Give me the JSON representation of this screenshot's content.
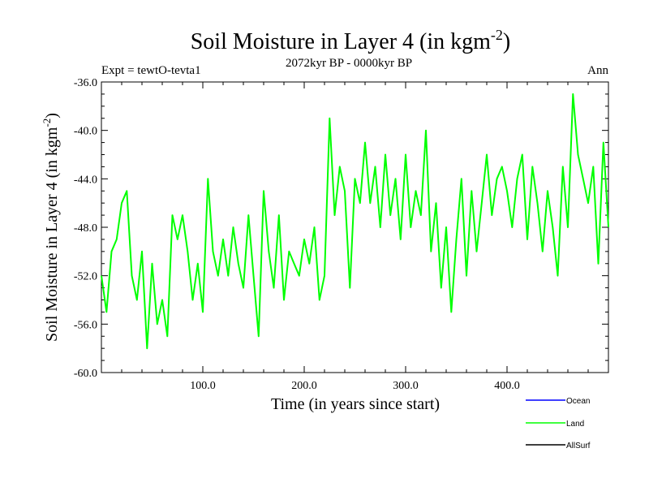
{
  "chart_data": {
    "type": "line",
    "title": "Soil Moisture in Layer 4 (in kgm",
    "title_sup": "-2",
    "title_close": ")",
    "subtitle": "2072kyr BP - 0000kyr BP",
    "left_label": "Expt = tewtO-tevta1",
    "right_label": "Ann",
    "xlabel": "Time (in years since start)",
    "ylabel": "Soil Moisture in Layer 4 (in kgm",
    "ylabel_sup": "-2",
    "ylabel_close": ")",
    "xlim": [
      0,
      500
    ],
    "ylim": [
      -60,
      -36
    ],
    "xticks": [
      "100.0",
      "200.0",
      "300.0",
      "400.0"
    ],
    "xtick_values": [
      100,
      200,
      300,
      400
    ],
    "yticks": [
      "-36.0",
      "-40.0",
      "-44.0",
      "-48.0",
      "-52.0",
      "-56.0",
      "-60.0"
    ],
    "ytick_values": [
      -36,
      -40,
      -44,
      -48,
      -52,
      -56,
      -60
    ],
    "legend": [
      {
        "name": "Ocean",
        "color": "#0000ff"
      },
      {
        "name": "Land",
        "color": "#00ff00"
      },
      {
        "name": "AllSurf",
        "color": "#000000"
      }
    ],
    "series": [
      {
        "name": "Land",
        "color": "#00ff00",
        "x": [
          0,
          5,
          10,
          15,
          20,
          25,
          30,
          35,
          40,
          45,
          50,
          55,
          60,
          65,
          70,
          75,
          80,
          85,
          90,
          95,
          100,
          105,
          110,
          115,
          120,
          125,
          130,
          135,
          140,
          145,
          150,
          155,
          160,
          165,
          170,
          175,
          180,
          185,
          190,
          195,
          200,
          205,
          210,
          215,
          220,
          225,
          230,
          235,
          240,
          245,
          250,
          255,
          260,
          265,
          270,
          275,
          280,
          285,
          290,
          295,
          300,
          305,
          310,
          315,
          320,
          325,
          330,
          335,
          340,
          345,
          350,
          355,
          360,
          365,
          370,
          375,
          380,
          385,
          390,
          395,
          400,
          405,
          410,
          415,
          420,
          425,
          430,
          435,
          440,
          445,
          450,
          455,
          460,
          465,
          470,
          475,
          480,
          485,
          490,
          495,
          500
        ],
        "values": [
          -52,
          -55,
          -50,
          -49,
          -46,
          -45,
          -52,
          -54,
          -50,
          -58,
          -51,
          -56,
          -54,
          -57,
          -47,
          -49,
          -47,
          -50,
          -54,
          -51,
          -55,
          -44,
          -50,
          -52,
          -49,
          -52,
          -48,
          -51,
          -53,
          -47,
          -52,
          -57,
          -45,
          -50,
          -53,
          -47,
          -54,
          -50,
          -51,
          -52,
          -49,
          -51,
          -48,
          -54,
          -52,
          -39,
          -47,
          -43,
          -45,
          -53,
          -44,
          -46,
          -41,
          -46,
          -43,
          -48,
          -42,
          -47,
          -44,
          -49,
          -42,
          -48,
          -45,
          -47,
          -40,
          -50,
          -46,
          -53,
          -48,
          -55,
          -49,
          -44,
          -52,
          -45,
          -50,
          -46,
          -42,
          -47,
          -44,
          -43,
          -45,
          -48,
          -44,
          -42,
          -49,
          -43,
          -46,
          -50,
          -45,
          -48,
          -52,
          -43,
          -48,
          -37,
          -42,
          -44,
          -46,
          -43,
          -51,
          -41,
          -48
        ]
      }
    ]
  }
}
